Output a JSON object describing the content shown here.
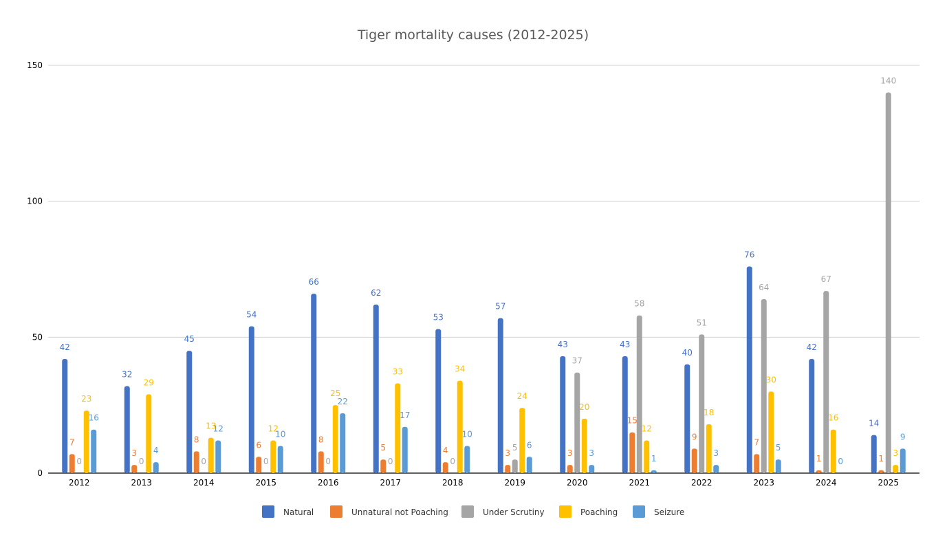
{
  "chart_data": {
    "type": "bar",
    "title": "Tiger mortality causes (2012-2025)",
    "xlabel": "",
    "ylabel": "",
    "ylim": [
      0,
      150
    ],
    "yticks": [
      "0",
      "50",
      "100",
      "150"
    ],
    "grid": true,
    "legend_position": "bottom",
    "categories": [
      "2012",
      "2013",
      "2014",
      "2015",
      "2016",
      "2017",
      "2018",
      "2019",
      "2020",
      "2021",
      "2022",
      "2023",
      "2024",
      "2025"
    ],
    "series": [
      {
        "name": "Natural",
        "color": "#4472C4",
        "values": [
          42,
          32,
          45,
          54,
          66,
          62,
          53,
          57,
          43,
          43,
          40,
          76,
          42,
          14
        ]
      },
      {
        "name": "Unnatural not Poaching",
        "color": "#ED7D31",
        "values": [
          7,
          3,
          8,
          6,
          8,
          5,
          4,
          3,
          3,
          15,
          9,
          7,
          1,
          1
        ]
      },
      {
        "name": "Under Scrutiny",
        "color": "#A5A5A5",
        "values": [
          0,
          0,
          0,
          0,
          0,
          0,
          0,
          5,
          37,
          58,
          51,
          64,
          67,
          140
        ]
      },
      {
        "name": "Poaching",
        "color": "#FFC000",
        "values": [
          23,
          29,
          13,
          12,
          25,
          33,
          34,
          24,
          20,
          12,
          18,
          30,
          16,
          3
        ]
      },
      {
        "name": "Seizure",
        "color": "#5B9BD5",
        "values": [
          16,
          4,
          12,
          10,
          22,
          17,
          10,
          6,
          3,
          1,
          3,
          5,
          0,
          9
        ]
      }
    ]
  }
}
